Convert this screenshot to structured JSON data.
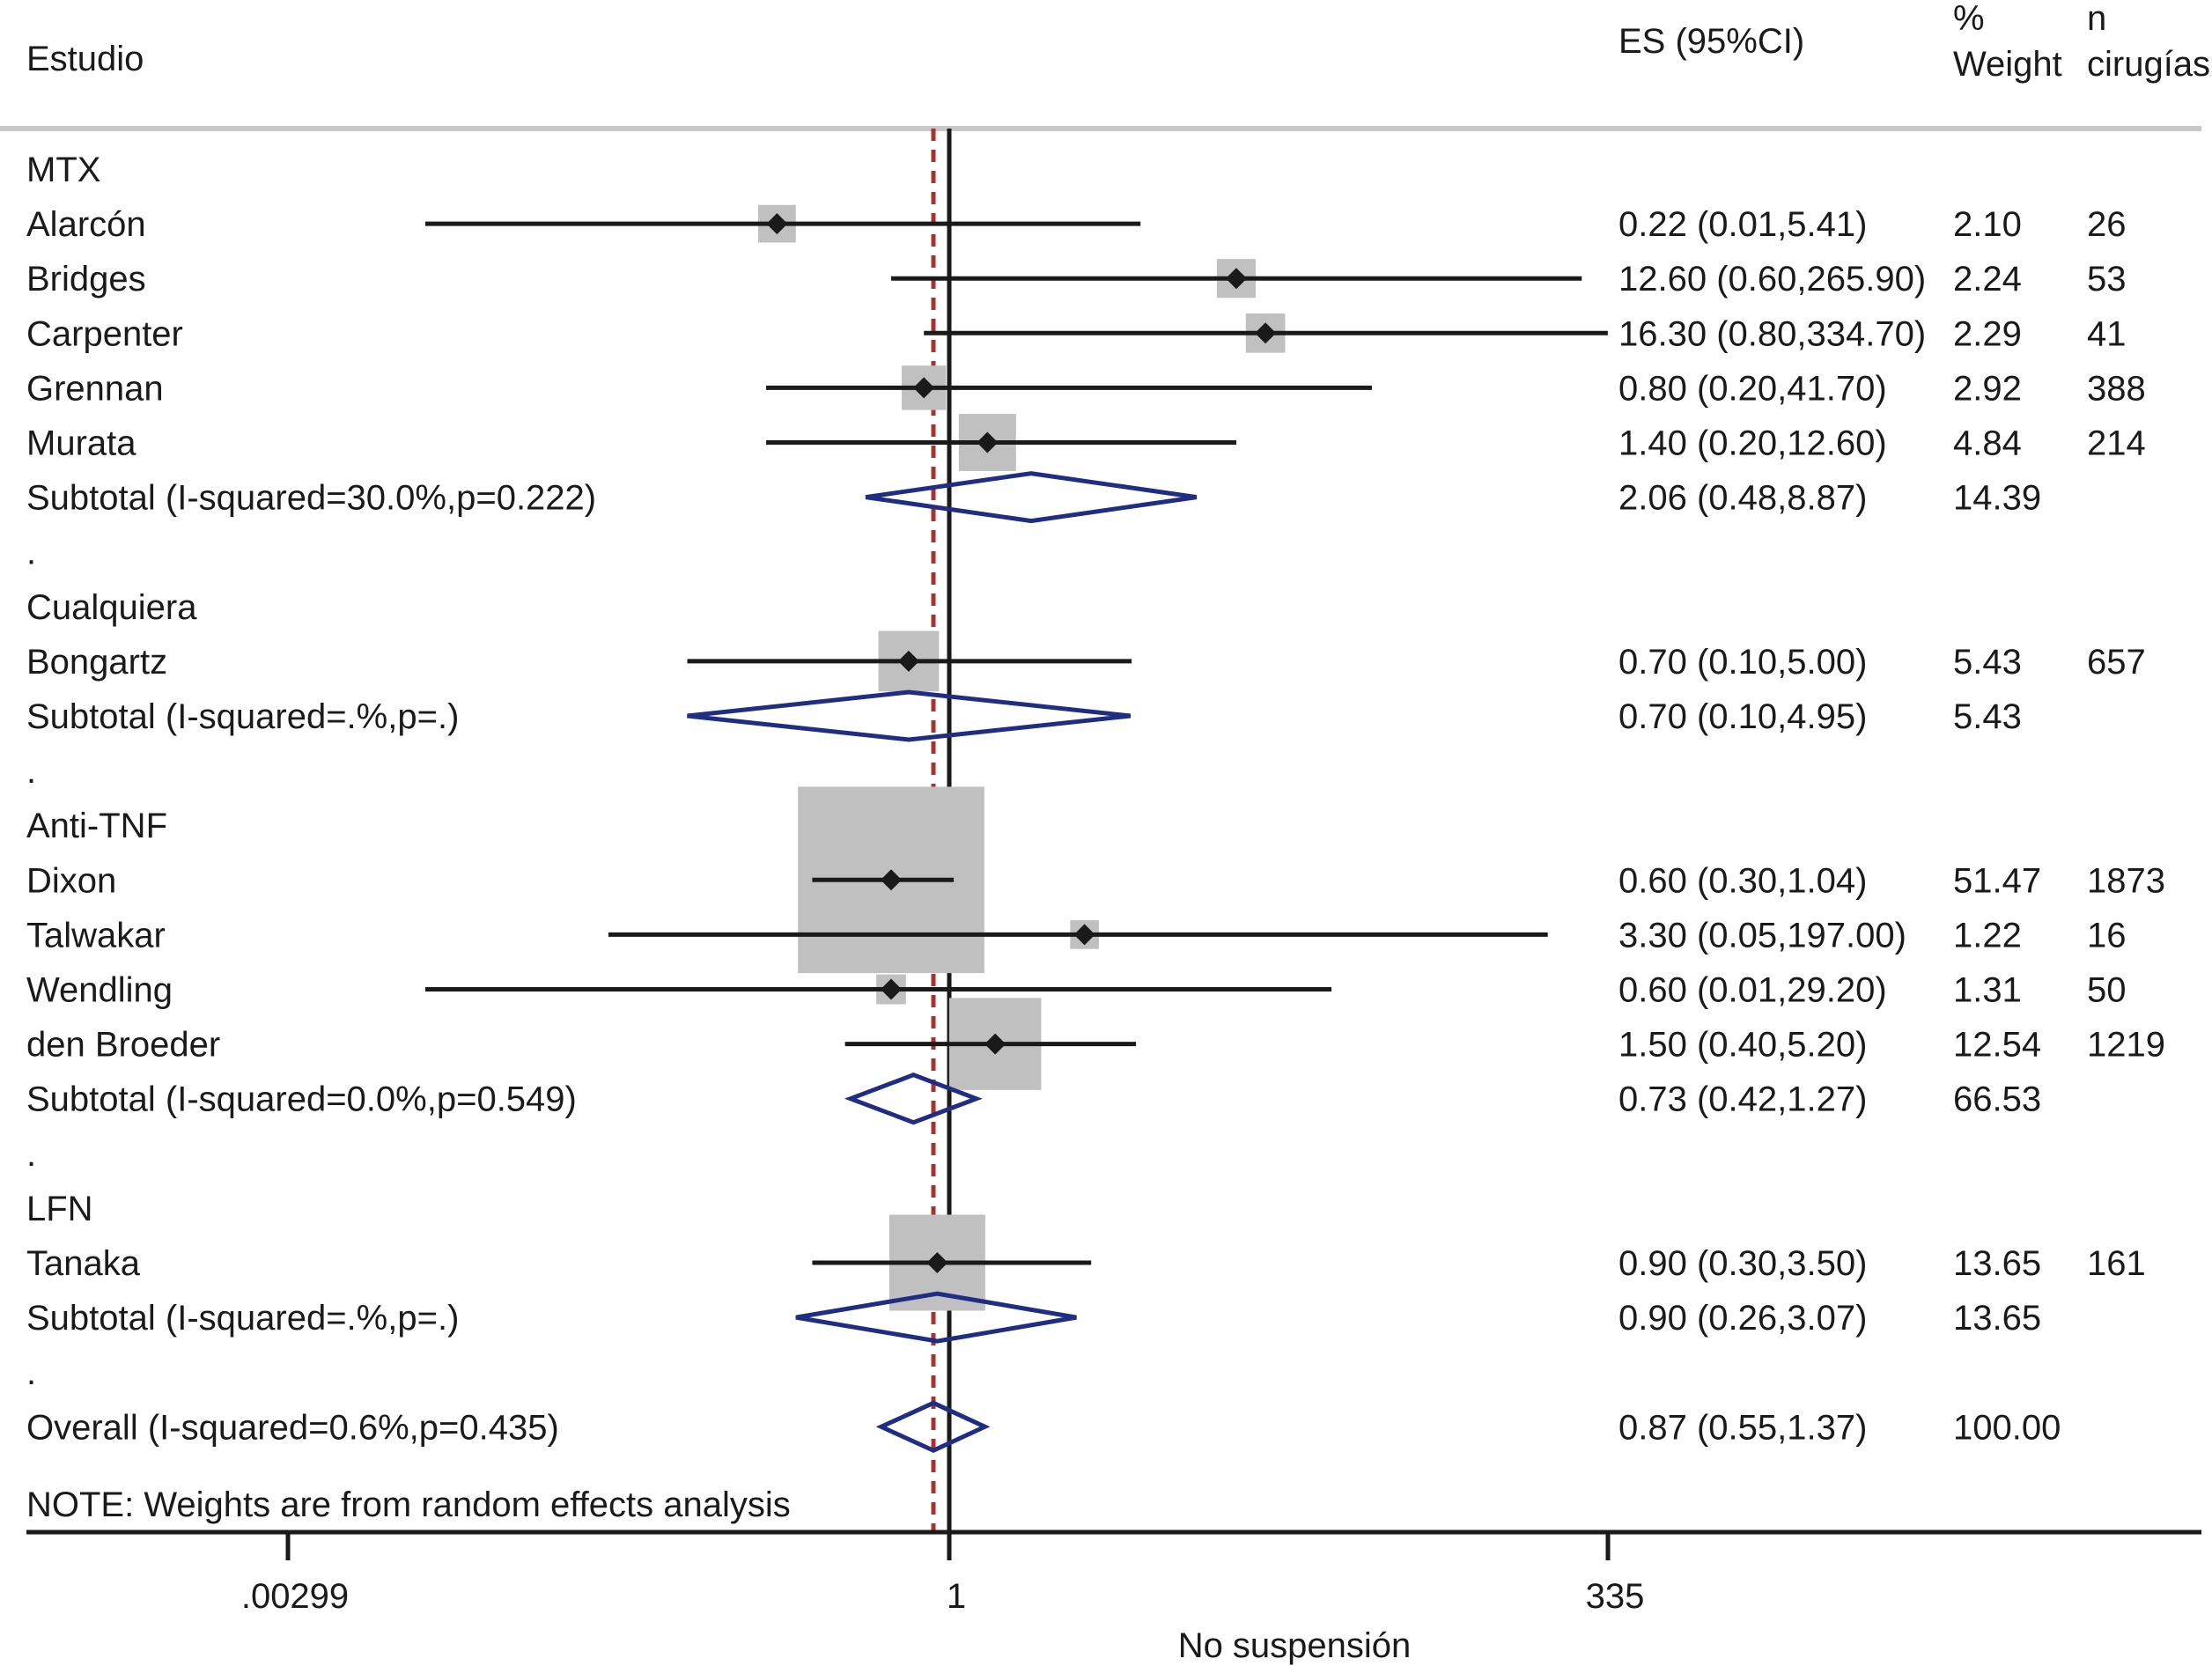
{
  "chart_data": {
    "type": "forest",
    "headers": {
      "study": "Estudio",
      "es": "ES (95%CI)",
      "weight_line1": "%",
      "weight_line2": "Weight",
      "n_line1": "n",
      "n_line2": "cirugías"
    },
    "rows": [
      {
        "kind": "group",
        "label": "MTX"
      },
      {
        "kind": "study",
        "label": "Alarcón",
        "es": 0.22,
        "lo": 0.01,
        "hi": 5.41,
        "es_text": "0.22 (0.01,5.41)",
        "weight": "2.10",
        "n": "26"
      },
      {
        "kind": "study",
        "label": "Bridges",
        "es": 12.6,
        "lo": 0.6,
        "hi": 265.9,
        "es_text": "12.60 (0.60,265.90)",
        "weight": "2.24",
        "n": "53"
      },
      {
        "kind": "study",
        "label": "Carpenter",
        "es": 16.3,
        "lo": 0.8,
        "hi": 334.7,
        "es_text": "16.30 (0.80,334.70)",
        "weight": "2.29",
        "n": "41"
      },
      {
        "kind": "study",
        "label": "Grennan",
        "es": 0.8,
        "lo": 0.2,
        "hi": 41.7,
        "es_text": "0.80 (0.20,41.70)",
        "weight": "2.92",
        "n": "388"
      },
      {
        "kind": "study",
        "label": "Murata",
        "es": 1.4,
        "lo": 0.2,
        "hi": 12.6,
        "es_text": "1.40 (0.20,12.60)",
        "weight": "4.84",
        "n": "214"
      },
      {
        "kind": "subtotal",
        "label": "Subtotal (I-squared=30.0%,p=0.222)",
        "es": 2.06,
        "lo": 0.48,
        "hi": 8.87,
        "es_text": "2.06 (0.48,8.87)",
        "weight": "14.39"
      },
      {
        "kind": "dot",
        "label": "."
      },
      {
        "kind": "group",
        "label": "Cualquiera"
      },
      {
        "kind": "study",
        "label": "Bongartz",
        "es": 0.7,
        "lo": 0.1,
        "hi": 5.0,
        "es_text": "0.70 (0.10,5.00)",
        "weight": "5.43",
        "n": "657"
      },
      {
        "kind": "subtotal",
        "label": "Subtotal (I-squared=.%,p=.)",
        "es": 0.7,
        "lo": 0.1,
        "hi": 4.95,
        "es_text": "0.70 (0.10,4.95)",
        "weight": "5.43"
      },
      {
        "kind": "dot",
        "label": "."
      },
      {
        "kind": "group",
        "label": "Anti-TNF"
      },
      {
        "kind": "study",
        "label": "Dixon",
        "es": 0.6,
        "lo": 0.3,
        "hi": 1.04,
        "es_text": "0.60 (0.30,1.04)",
        "weight": "51.47",
        "n": "1873"
      },
      {
        "kind": "study",
        "label": "Talwakar",
        "es": 3.3,
        "lo": 0.05,
        "hi": 197.0,
        "es_text": "3.30 (0.05,197.00)",
        "weight": "1.22",
        "n": "16"
      },
      {
        "kind": "study",
        "label": "Wendling",
        "es": 0.6,
        "lo": 0.01,
        "hi": 29.2,
        "es_text": "0.60 (0.01,29.20)",
        "weight": "1.31",
        "n": "50"
      },
      {
        "kind": "study",
        "label": "den Broeder",
        "es": 1.5,
        "lo": 0.4,
        "hi": 5.2,
        "es_text": "1.50 (0.40,5.20)",
        "weight": "12.54",
        "n": "1219"
      },
      {
        "kind": "subtotal",
        "label": "Subtotal (I-squared=0.0%,p=0.549)",
        "es": 0.73,
        "lo": 0.42,
        "hi": 1.27,
        "es_text": "0.73 (0.42,1.27)",
        "weight": "66.53"
      },
      {
        "kind": "dot",
        "label": "."
      },
      {
        "kind": "group",
        "label": "LFN"
      },
      {
        "kind": "study",
        "label": "Tanaka",
        "es": 0.9,
        "lo": 0.3,
        "hi": 3.5,
        "es_text": "0.90 (0.30,3.50)",
        "weight": "13.65",
        "n": "161"
      },
      {
        "kind": "subtotal",
        "label": "Subtotal (I-squared=.%,p=.)",
        "es": 0.9,
        "lo": 0.26,
        "hi": 3.07,
        "es_text": "0.90 (0.26,3.07)",
        "weight": "13.65"
      },
      {
        "kind": "dot",
        "label": "."
      },
      {
        "kind": "overall",
        "label": "Overall (I-squared=0.6%,p=0.435)",
        "es": 0.87,
        "lo": 0.55,
        "hi": 1.37,
        "es_text": "0.87 (0.55,1.37)",
        "weight": "100.00"
      }
    ],
    "note": "NOTE: Weights are from random effects analysis",
    "x_axis": {
      "scale": "log",
      "range": [
        0.00299,
        335
      ],
      "ticks": [
        {
          "value": 0.00299,
          "label": ".00299"
        },
        {
          "value": 1,
          "label": "1"
        },
        {
          "value": 335,
          "label": "335"
        }
      ],
      "label": "No suspensión"
    },
    "null_line": 1,
    "overall_line": 0.87,
    "colors": {
      "ink": "#1a1a1a",
      "box": "#c0c0c0",
      "diamond": "#1f2e82",
      "overall_line": "#a83232",
      "header_rule": "#c8c8c8"
    }
  }
}
